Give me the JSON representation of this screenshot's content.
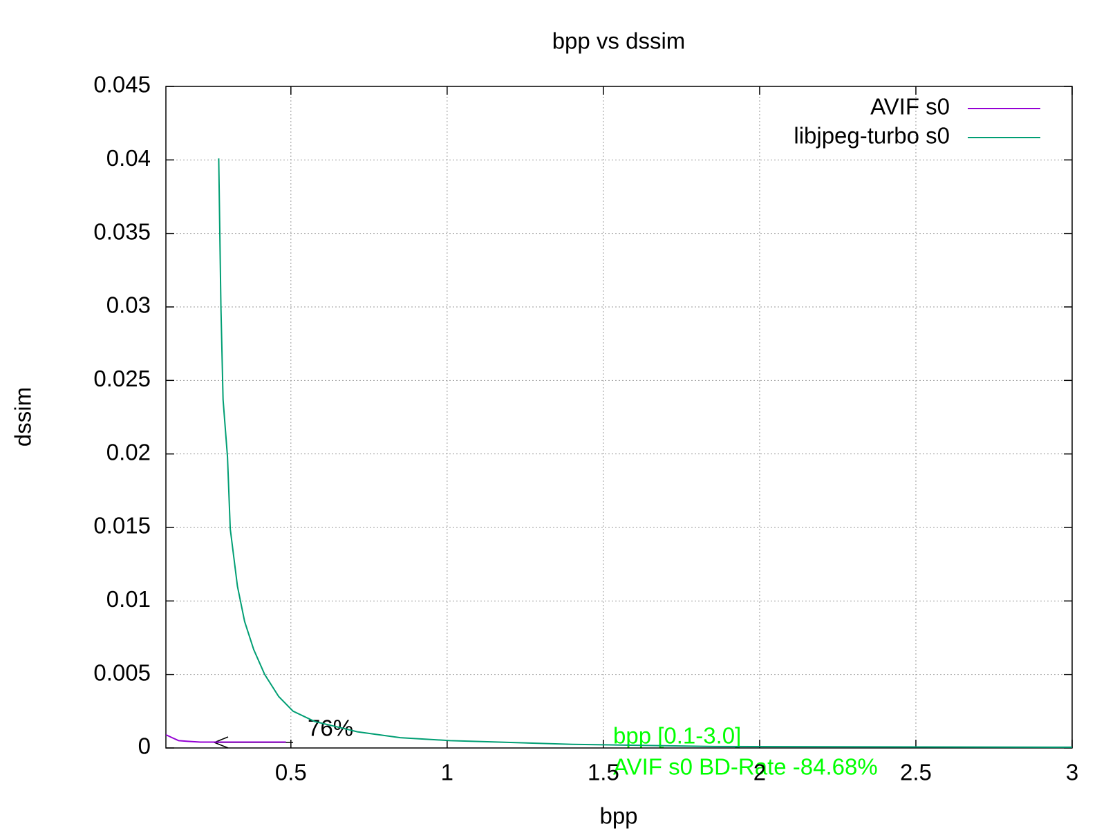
{
  "chart_data": {
    "type": "line",
    "title": "bpp vs dssim",
    "x_label": "bpp",
    "y_label": "dssim",
    "xlim": [
      0.1,
      3
    ],
    "xticks": [
      0.5,
      1,
      1.5,
      2,
      2.5,
      3
    ],
    "ylim": [
      0,
      0.045
    ],
    "yticks": [
      0,
      0.005,
      0.01,
      0.015,
      0.02,
      0.025,
      0.03,
      0.035,
      0.04,
      0.045
    ],
    "grid": true,
    "legend": "top-right",
    "series": [
      {
        "name": "AVIF s0",
        "color": "#9400d3",
        "x": [
          0.1,
          0.12,
          0.141,
          0.17,
          0.21,
          0.3,
          0.4,
          0.484
        ],
        "values": [
          0.0009,
          0.0007,
          0.0005,
          0.00045,
          0.0004,
          0.0004,
          0.0004,
          0.0004
        ]
      },
      {
        "name": "libjpeg-turbo s0",
        "color": "#009e73",
        "x": [
          0.269,
          0.276,
          0.283,
          0.297,
          0.306,
          0.329,
          0.352,
          0.381,
          0.416,
          0.461,
          0.507,
          0.576,
          0.713,
          0.85,
          1.01,
          1.4,
          1.856,
          3.0
        ],
        "values": [
          0.0401,
          0.03,
          0.0237,
          0.0198,
          0.0149,
          0.011,
          0.0086,
          0.0067,
          0.005,
          0.0035,
          0.0025,
          0.0018,
          0.0011,
          0.0007,
          0.0005,
          0.00025,
          0.0001,
          5e-05
        ]
      }
    ],
    "annotations": [
      "76%",
      "bpp [0.1-3.0]",
      "AVIF s0 BD-Rate -84.68%"
    ]
  }
}
